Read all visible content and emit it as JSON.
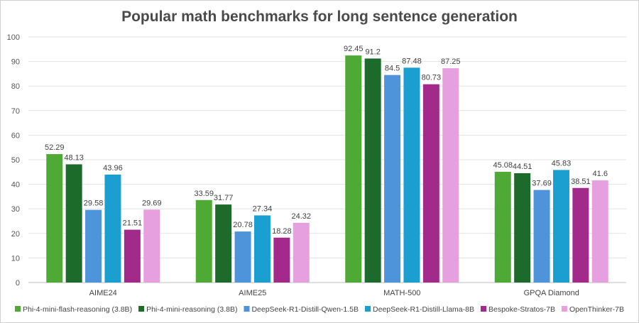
{
  "chart_data": {
    "type": "bar",
    "title": "Popular math benchmarks for long sentence generation",
    "categories": [
      "AIME24",
      "AIME25",
      "MATH-500",
      "GPQA Diamond"
    ],
    "ylim": [
      0,
      100
    ],
    "yticks": [
      0,
      10,
      20,
      30,
      40,
      50,
      60,
      70,
      80,
      90,
      100
    ],
    "grid": true,
    "legend_position": "bottom",
    "data_labels": true,
    "series": [
      {
        "name": "Phi-4-mini-flash-reasoning (3.8B)",
        "color": "#4eaa35",
        "values": [
          52.29,
          33.59,
          92.45,
          45.08
        ]
      },
      {
        "name": "Phi-4-mini-reasoning (3.8B)",
        "color": "#1c6b2b",
        "values": [
          48.13,
          31.77,
          91.2,
          44.51
        ]
      },
      {
        "name": "DeepSeek-R1-Distill-Qwen-1.5B",
        "color": "#4e94da",
        "values": [
          29.58,
          20.78,
          84.5,
          37.69
        ]
      },
      {
        "name": "DeepSeek-R1-Distill-Llama-8B",
        "color": "#1a9fd0",
        "values": [
          43.96,
          27.34,
          87.48,
          45.83
        ]
      },
      {
        "name": "Bespoke-Stratos-7B",
        "color": "#a12a8b",
        "values": [
          21.51,
          18.28,
          80.73,
          38.51
        ]
      },
      {
        "name": "OpenThinker-7B",
        "color": "#e6a0df",
        "values": [
          29.69,
          24.32,
          87.25,
          41.6
        ]
      }
    ]
  }
}
